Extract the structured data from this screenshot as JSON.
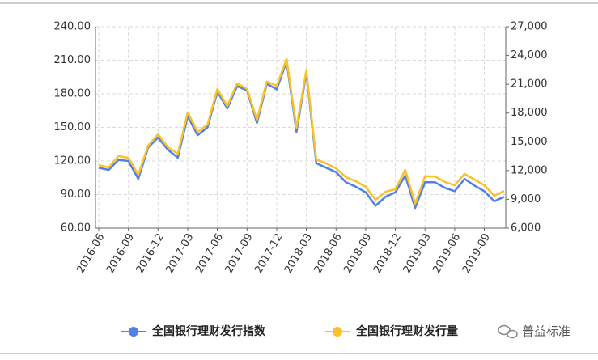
{
  "chart_data": {
    "type": "line",
    "categories": [
      "2016-06",
      null,
      null,
      "2016-09",
      null,
      null,
      "2016-12",
      null,
      null,
      "2017-03",
      null,
      null,
      "2017-06",
      null,
      null,
      "2017-09",
      null,
      null,
      "2017-12",
      null,
      null,
      "2018-03",
      null,
      null,
      "2018-06",
      null,
      null,
      "2018-09",
      null,
      null,
      "2018-12",
      null,
      null,
      "2019-03",
      null,
      null,
      "2019-06",
      null,
      null,
      "2019-09",
      null,
      null
    ],
    "series": [
      {
        "name": "全国银行理财发行指数",
        "color": "#4f81e8",
        "values": [
          114,
          112,
          121,
          120,
          104,
          132,
          141,
          130,
          123,
          160,
          143,
          150,
          182,
          167,
          187,
          183,
          154,
          189,
          184,
          209,
          146,
          199,
          118,
          114,
          110,
          101,
          97,
          92,
          80,
          88,
          92,
          107,
          78,
          101,
          101,
          96,
          93,
          104,
          98,
          93,
          84,
          88
        ]
      },
      {
        "name": "全国银行理财发行量",
        "color": "#f9c12a",
        "axis": "y2",
        "values": [
          12580,
          12320,
          13510,
          13340,
          11570,
          14600,
          15780,
          14430,
          13760,
          18060,
          16030,
          16790,
          20500,
          18730,
          21100,
          20500,
          17300,
          21270,
          20840,
          23630,
          16460,
          22450,
          13170,
          12750,
          12240,
          11310,
          10890,
          10300,
          8950,
          9790,
          10050,
          12070,
          8530,
          11400,
          11400,
          10810,
          10470,
          11650,
          11060,
          10470,
          9370,
          9880
        ]
      }
    ],
    "ylim": [
      60,
      240
    ],
    "yticks": [
      {
        "value": 60,
        "label": "60.00"
      },
      {
        "value": 90,
        "label": "90.00"
      },
      {
        "value": 120,
        "label": "120.00"
      },
      {
        "value": 150,
        "label": "150.00"
      },
      {
        "value": 180,
        "label": "180.00"
      },
      {
        "value": 210,
        "label": "210.00"
      },
      {
        "value": 240,
        "label": "240.00"
      }
    ],
    "y2lim": [
      6000,
      27000
    ],
    "y2ticks": [
      {
        "value": 6000,
        "label": "6,000"
      },
      {
        "value": 9000,
        "label": "9,000"
      },
      {
        "value": 12000,
        "label": "12,000"
      },
      {
        "value": 15000,
        "label": "15,000"
      },
      {
        "value": 18000,
        "label": "18,000"
      },
      {
        "value": 21000,
        "label": "21,000"
      },
      {
        "value": 24000,
        "label": "24,000"
      },
      {
        "value": 27000,
        "label": "27,000"
      }
    ],
    "grid": true,
    "legend": "bottom",
    "watermark": "普益标准"
  }
}
